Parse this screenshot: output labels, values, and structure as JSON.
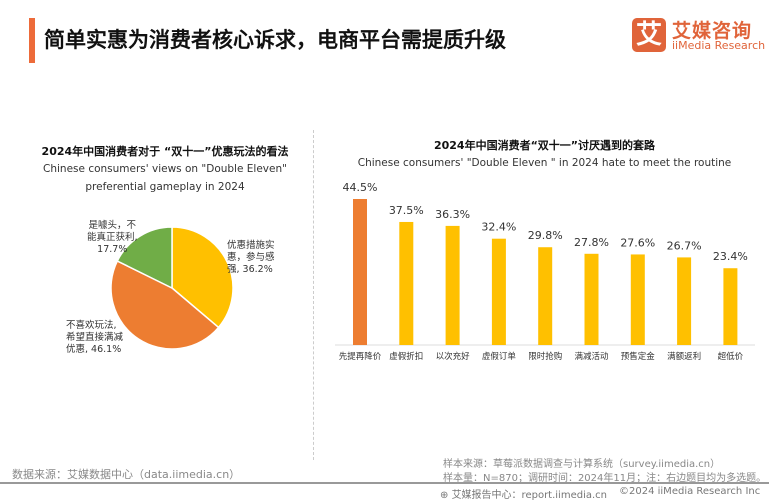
{
  "header": {
    "title": "简单实惠为消费者核心诉求，电商平台需提质升级",
    "logo_cn": "艾媒咨询",
    "logo_en": "iiMedia Research",
    "logo_mark": "艾"
  },
  "chart_data": [
    {
      "type": "pie",
      "title": "2024年中国消费者对于 “双十一”优惠玩法的看法",
      "subtitle": [
        "Chinese consumers' views on \"Double Eleven\"",
        "preferential gameplay in 2024"
      ],
      "slices": [
        {
          "label": "优惠措施实惠，参与感强",
          "value": 36.2,
          "color": "#FFC000",
          "text": [
            "优惠措施实",
            "惠，参与感",
            "强, 36.2%"
          ]
        },
        {
          "label": "不喜欢玩法，希望直接满减优惠",
          "value": 46.1,
          "color": "#ED7D31",
          "text": [
            "不喜欢玩法,",
            "希望直接满减",
            "优惠, 46.1%"
          ]
        },
        {
          "label": "是噱头，不能真正获利",
          "value": 17.7,
          "color": "#70AD47",
          "text": [
            "是噱头，不",
            "能真正获利,",
            "17.7%"
          ]
        }
      ]
    },
    {
      "type": "bar",
      "title": "2024年中国消费者“双十一”讨厌遇到的套路",
      "subtitle": "Chinese consumers' \"Double Eleven \" in 2024 hate to meet the routine",
      "categories": [
        "先提再降价",
        "虚假折扣",
        "以次充好",
        "虚假订单",
        "限时抢购",
        "满减活动",
        "预售定金",
        "满额返利",
        "超低价"
      ],
      "values": [
        44.5,
        37.5,
        36.3,
        32.4,
        29.8,
        27.8,
        27.6,
        26.7,
        23.4
      ],
      "labels": [
        "44.5%",
        "37.5%",
        "36.3%",
        "32.4%",
        "29.8%",
        "27.8%",
        "27.6%",
        "26.7%",
        "23.4%"
      ],
      "colors": [
        "#ED7D31",
        "#FFC000",
        "#FFC000",
        "#FFC000",
        "#FFC000",
        "#FFC000",
        "#FFC000",
        "#FFC000",
        "#FFC000"
      ],
      "ylim": [
        0,
        50
      ]
    }
  ],
  "footer": {
    "data_source": "数据来源：艾媒数据中心（data.iimedia.cn）",
    "sample_source": "样本来源：草莓派数据调查与计算系统（survey.iimedia.cn）",
    "sample_size": "样本量：N=870；调研时间：2024年11月；注：右边题目均为多选题。",
    "report_center": "艾媒报告中心：report.iimedia.cn",
    "copyright": "©2024  iiMedia Research  Inc"
  }
}
